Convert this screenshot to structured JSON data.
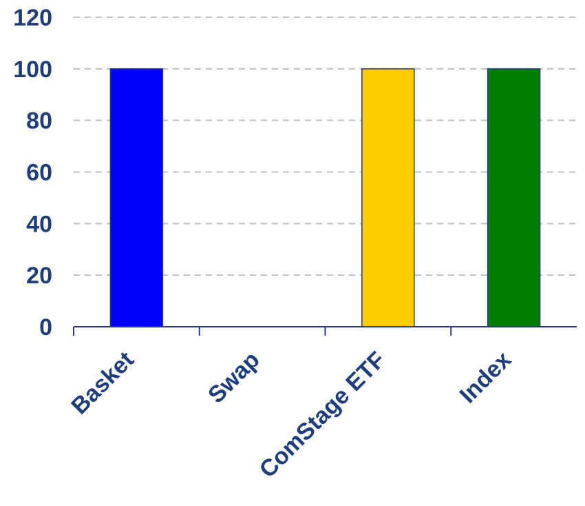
{
  "chart_data": {
    "type": "bar",
    "categories": [
      "Basket",
      "Swap",
      "ComStage ETF",
      "Index"
    ],
    "values": [
      100,
      0,
      100,
      100
    ],
    "bar_colors": [
      "#0000FF",
      "#FFFFFF",
      "#FFCC00",
      "#008000"
    ],
    "yticks": [
      "0",
      "20",
      "40",
      "60",
      "80",
      "100",
      "120"
    ],
    "ylim": [
      0,
      120
    ],
    "grid": true,
    "legend": "none",
    "text_color": "#1F3D7A",
    "axis_color": "#2B3A80",
    "grid_color": "#BFBFBF"
  }
}
